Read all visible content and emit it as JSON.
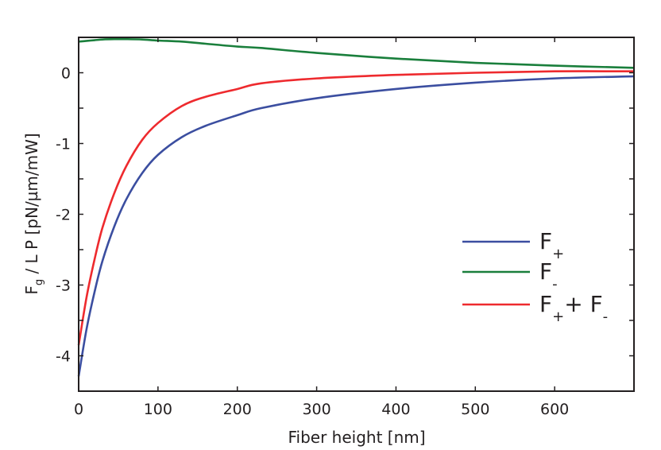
{
  "chart_data": {
    "type": "line",
    "title": "",
    "xlabel": "Fiber height [nm]",
    "ylabel_parts": [
      {
        "t": "F"
      },
      {
        "sub": "g"
      },
      {
        "t": " / L P [pN/µm/mW]"
      }
    ],
    "xlim": [
      0,
      700
    ],
    "ylim": [
      -4.5,
      0.5
    ],
    "xticks": [
      0,
      100,
      200,
      300,
      400,
      500,
      600
    ],
    "yticks": [
      0,
      -1,
      -2,
      -3,
      -4
    ],
    "yminor_step": 0.5,
    "grid": false,
    "legend_position": "center-right",
    "x": [
      0,
      10,
      20,
      30,
      45,
      60,
      80,
      100,
      130,
      160,
      200,
      230,
      300,
      400,
      500,
      600,
      700
    ],
    "series": [
      {
        "name": "F+",
        "color": "#3b4ea0",
        "legend_parts": [
          {
            "t": "F"
          },
          {
            "sub": "+"
          }
        ],
        "values": [
          -4.29,
          -3.62,
          -3.1,
          -2.66,
          -2.17,
          -1.79,
          -1.42,
          -1.16,
          -0.91,
          -0.75,
          -0.6,
          -0.5,
          -0.36,
          -0.23,
          -0.14,
          -0.08,
          -0.05
        ]
      },
      {
        "name": "F-",
        "color": "#1a7f3c",
        "legend_parts": [
          {
            "t": "F"
          },
          {
            "sub": "-"
          }
        ],
        "values": [
          0.44,
          0.45,
          0.46,
          0.47,
          0.475,
          0.475,
          0.47,
          0.455,
          0.44,
          0.41,
          0.37,
          0.35,
          0.28,
          0.2,
          0.14,
          0.1,
          0.07
        ]
      },
      {
        "name": "F+ + F-",
        "color": "#ee2a2e",
        "legend_parts": [
          {
            "t": "F"
          },
          {
            "sub": "+"
          },
          {
            "t": "+ F"
          },
          {
            "sub": "-"
          }
        ],
        "values": [
          -3.85,
          -3.17,
          -2.64,
          -2.19,
          -1.7,
          -1.32,
          -0.95,
          -0.71,
          -0.47,
          -0.34,
          -0.23,
          -0.15,
          -0.08,
          -0.03,
          0.0,
          0.02,
          0.02
        ]
      }
    ]
  }
}
